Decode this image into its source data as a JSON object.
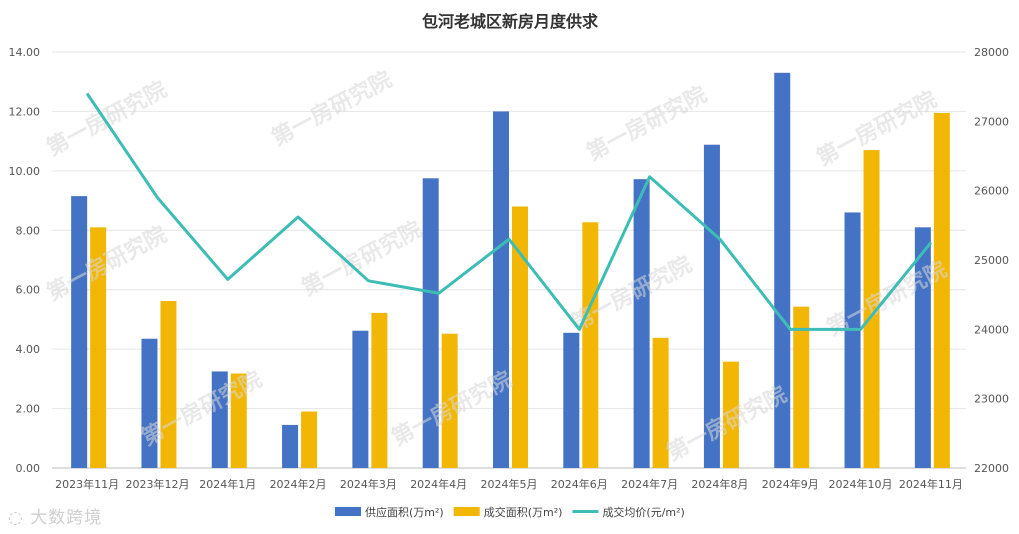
{
  "chart_data": {
    "type": "bar",
    "title": "包河老城区新房月度供求",
    "categories": [
      "2023年11月",
      "2023年12月",
      "2024年1月",
      "2024年2月",
      "2024年3月",
      "2024年4月",
      "2024年5月",
      "2024年6月",
      "2024年7月",
      "2024年8月",
      "2024年9月",
      "2024年10月",
      "2024年11月"
    ],
    "series": [
      {
        "name": "供应面积(万m²)",
        "kind": "bar",
        "axis": "left",
        "color": "#4472C4",
        "values": [
          9.15,
          4.35,
          3.25,
          1.45,
          4.62,
          9.75,
          12.0,
          4.55,
          9.72,
          10.88,
          13.3,
          8.6,
          8.1
        ]
      },
      {
        "name": "成交面积(万m²)",
        "kind": "bar",
        "axis": "left",
        "color": "#F2B705",
        "values": [
          8.1,
          5.62,
          3.18,
          1.9,
          5.22,
          4.52,
          8.8,
          8.27,
          4.38,
          3.58,
          5.43,
          10.7,
          11.95
        ]
      },
      {
        "name": "成交均价(元/m²)",
        "kind": "line",
        "axis": "right",
        "color": "#3DBDB5",
        "values": [
          27400,
          25900,
          24720,
          25620,
          24700,
          24520,
          25300,
          24000,
          26200,
          25300,
          24000,
          24000,
          25250
        ]
      }
    ],
    "left_axis": {
      "min": 0,
      "max": 14,
      "step": 2,
      "labels": [
        "0.00",
        "2.00",
        "4.00",
        "6.00",
        "8.00",
        "10.00",
        "12.00",
        "14.00"
      ]
    },
    "right_axis": {
      "min": 22000,
      "max": 28000,
      "step": 1000,
      "labels": [
        "22000",
        "23000",
        "24000",
        "25000",
        "26000",
        "27000",
        "28000"
      ]
    },
    "grid": true,
    "legend_position": "bottom"
  },
  "watermark": "第一房研究院",
  "brand": "大数跨境"
}
